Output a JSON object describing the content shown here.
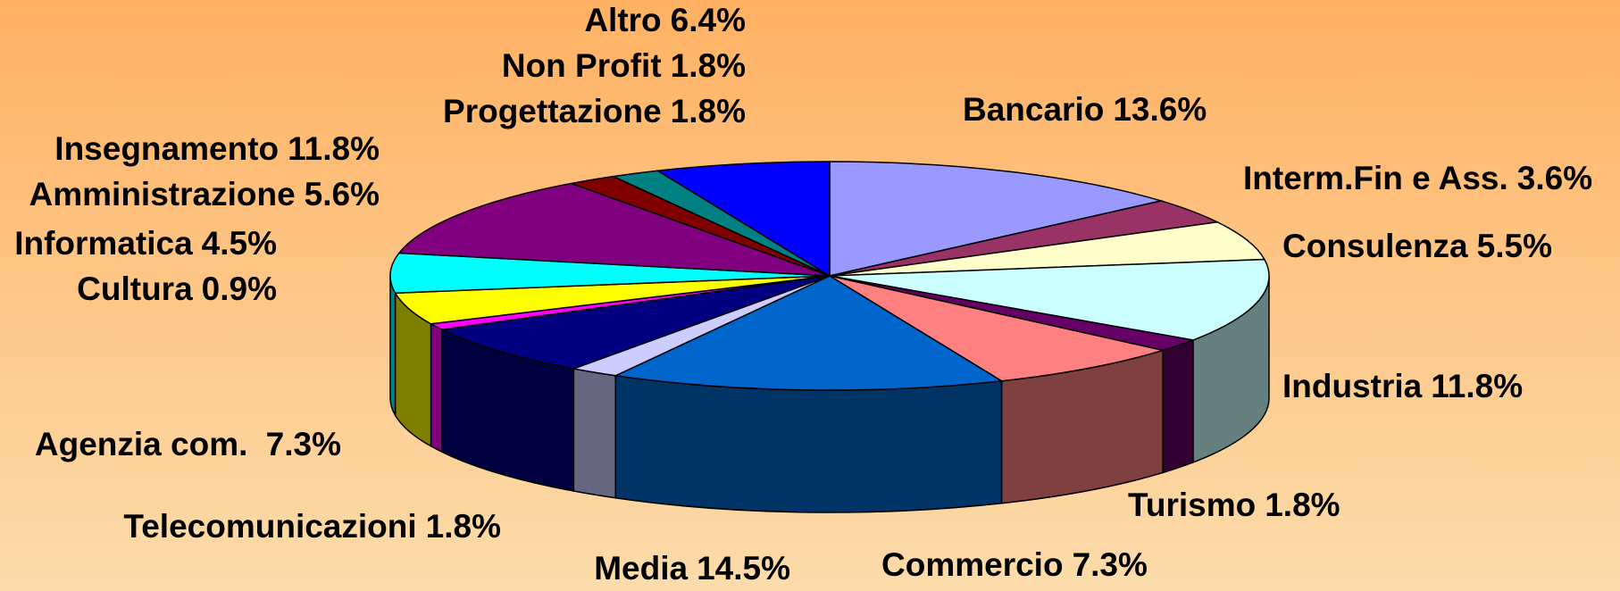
{
  "chart_data": {
    "type": "pie3d",
    "categories": [
      "Bancario",
      "Interm.Fin e Ass.",
      "Consulenza",
      "Industria",
      "Turismo",
      "Commercio",
      "Media",
      "Telecomunicazioni",
      "Agenzia com. ",
      "Cultura",
      "Informatica",
      "Amministrazione",
      "Insegnamento",
      "Progettazione",
      "Non Profit",
      "Altro"
    ],
    "values": [
      13.6,
      3.6,
      5.5,
      11.8,
      1.8,
      7.3,
      14.5,
      1.8,
      7.3,
      0.9,
      4.5,
      5.6,
      11.8,
      1.8,
      1.8,
      6.4
    ],
    "value_labels": [
      "13.6%",
      "3.6%",
      "5.5%",
      "11.8%",
      "1.8%",
      "7.3%",
      "14.5%",
      "1.8%",
      "7.3%",
      "0.9%",
      "4.5%",
      "5.6%",
      "11.8%",
      "1.8%",
      "1.8%",
      "6.4%"
    ],
    "colors": [
      "#9999ff",
      "#993366",
      "#ffffcc",
      "#ccffff",
      "#660066",
      "#ff8080",
      "#0066cc",
      "#ccccff",
      "#000080",
      "#ff00ff",
      "#ffff00",
      "#00ffff",
      "#800080",
      "#800000",
      "#008080",
      "#0000ff"
    ]
  }
}
